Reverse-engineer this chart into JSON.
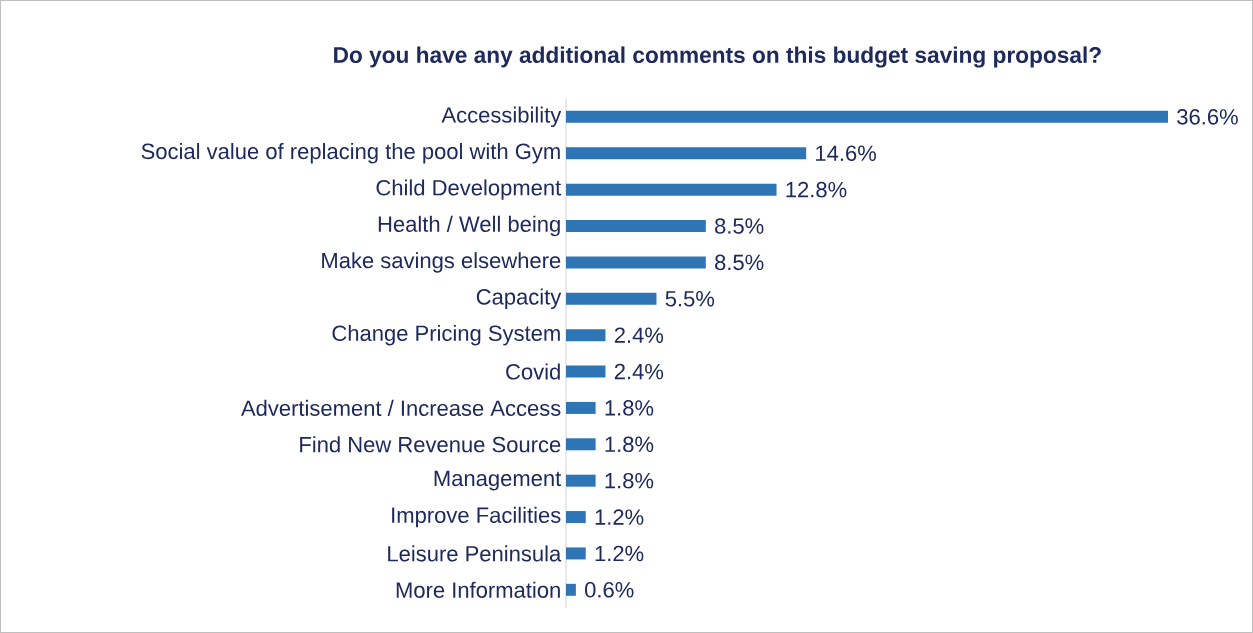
{
  "chart_data": {
    "type": "bar",
    "orientation": "horizontal",
    "title": "Do you have any additional comments on this budget saving proposal?",
    "categories": [
      "Accessibility",
      "Social value of replacing the pool with Gym",
      "Child Development",
      "Health / Well being",
      "Make savings elsewhere",
      "Capacity",
      "Change Pricing System",
      "Covid",
      "Advertisement / Increase Access",
      "Find New Revenue Source",
      "Management",
      "Improve Facilities",
      "Leisure Peninsula",
      "More Information"
    ],
    "values": [
      36.6,
      14.6,
      12.8,
      8.5,
      8.5,
      5.5,
      2.4,
      2.4,
      1.8,
      1.8,
      1.8,
      1.2,
      1.2,
      0.6
    ],
    "value_labels": [
      "36.6%",
      "14.6%",
      "12.8%",
      "8.5%",
      "8.5%",
      "5.5%",
      "2.4%",
      "2.4%",
      "1.8%",
      "1.8%",
      "1.8%",
      "1.2%",
      "1.2%",
      "0.6%"
    ],
    "color": "#2e75b6"
  }
}
